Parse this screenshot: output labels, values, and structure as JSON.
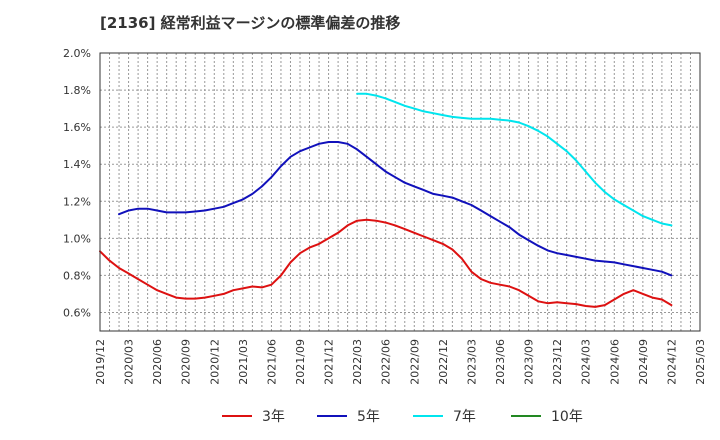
{
  "title": "[2136]  経常利益マージンの標準偏差の推移",
  "chart_data": {
    "type": "line",
    "y_axis": {
      "min": 0.5,
      "max": 2.0,
      "ticks": [
        0.6,
        0.8,
        1.0,
        1.2,
        1.4,
        1.6,
        1.8,
        2.0
      ],
      "tick_labels": [
        "0.6%",
        "0.8%",
        "1.0%",
        "1.2%",
        "1.4%",
        "1.6%",
        "1.8%",
        "2.0%"
      ],
      "unit": "%"
    },
    "x_axis": {
      "min": "2019-12",
      "max": "2025-03",
      "tick_labels": [
        "2019/12",
        "2020/03",
        "2020/06",
        "2020/09",
        "2020/12",
        "2021/03",
        "2021/06",
        "2021/09",
        "2021/12",
        "2022/03",
        "2022/06",
        "2022/09",
        "2022/12",
        "2023/03",
        "2023/06",
        "2023/09",
        "2023/12",
        "2024/03",
        "2024/06",
        "2024/09",
        "2024/12",
        "2025/03"
      ]
    },
    "grid": true,
    "legend_position": "bottom",
    "series": [
      {
        "name": "3年",
        "color": "#dd1111",
        "x": [
          "2019-12",
          "2020-01",
          "2020-02",
          "2020-03",
          "2020-04",
          "2020-05",
          "2020-06",
          "2020-07",
          "2020-08",
          "2020-09",
          "2020-10",
          "2020-11",
          "2020-12",
          "2021-01",
          "2021-02",
          "2021-03",
          "2021-04",
          "2021-05",
          "2021-06",
          "2021-07",
          "2021-08",
          "2021-09",
          "2021-10",
          "2021-11",
          "2021-12",
          "2022-01",
          "2022-02",
          "2022-03",
          "2022-04",
          "2022-05",
          "2022-06",
          "2022-07",
          "2022-08",
          "2022-09",
          "2022-10",
          "2022-11",
          "2022-12",
          "2023-01",
          "2023-02",
          "2023-03",
          "2023-04",
          "2023-05",
          "2023-06",
          "2023-07",
          "2023-08",
          "2023-09",
          "2023-10",
          "2023-11",
          "2023-12",
          "2024-01",
          "2024-02",
          "2024-03",
          "2024-04",
          "2024-05",
          "2024-06",
          "2024-07",
          "2024-08",
          "2024-09",
          "2024-10",
          "2024-11",
          "2024-12"
        ],
        "values": [
          0.93,
          0.88,
          0.84,
          0.81,
          0.78,
          0.75,
          0.72,
          0.7,
          0.68,
          0.675,
          0.675,
          0.68,
          0.69,
          0.7,
          0.72,
          0.73,
          0.74,
          0.735,
          0.75,
          0.8,
          0.87,
          0.92,
          0.95,
          0.97,
          1.0,
          1.03,
          1.07,
          1.095,
          1.1,
          1.095,
          1.085,
          1.07,
          1.05,
          1.03,
          1.01,
          0.99,
          0.97,
          0.94,
          0.89,
          0.82,
          0.78,
          0.76,
          0.75,
          0.74,
          0.72,
          0.69,
          0.66,
          0.65,
          0.655,
          0.65,
          0.645,
          0.635,
          0.63,
          0.64,
          0.67,
          0.7,
          0.72,
          0.7,
          0.68,
          0.67,
          0.64
        ]
      },
      {
        "name": "5年",
        "color": "#1111bb",
        "x": [
          "2020-02",
          "2020-03",
          "2020-04",
          "2020-05",
          "2020-06",
          "2020-07",
          "2020-08",
          "2020-09",
          "2020-10",
          "2020-11",
          "2020-12",
          "2021-01",
          "2021-02",
          "2021-03",
          "2021-04",
          "2021-05",
          "2021-06",
          "2021-07",
          "2021-08",
          "2021-09",
          "2021-10",
          "2021-11",
          "2021-12",
          "2022-01",
          "2022-02",
          "2022-03",
          "2022-04",
          "2022-05",
          "2022-06",
          "2022-07",
          "2022-08",
          "2022-09",
          "2022-10",
          "2022-11",
          "2022-12",
          "2023-01",
          "2023-02",
          "2023-03",
          "2023-04",
          "2023-05",
          "2023-06",
          "2023-07",
          "2023-08",
          "2023-09",
          "2023-10",
          "2023-11",
          "2023-12",
          "2024-01",
          "2024-02",
          "2024-03",
          "2024-04",
          "2024-05",
          "2024-06",
          "2024-07",
          "2024-08",
          "2024-09",
          "2024-10",
          "2024-11",
          "2024-12"
        ],
        "values": [
          1.13,
          1.15,
          1.16,
          1.16,
          1.15,
          1.14,
          1.14,
          1.14,
          1.145,
          1.15,
          1.16,
          1.17,
          1.19,
          1.21,
          1.24,
          1.28,
          1.33,
          1.39,
          1.44,
          1.47,
          1.49,
          1.51,
          1.52,
          1.52,
          1.51,
          1.48,
          1.44,
          1.4,
          1.36,
          1.33,
          1.3,
          1.28,
          1.26,
          1.24,
          1.23,
          1.22,
          1.2,
          1.18,
          1.15,
          1.12,
          1.09,
          1.06,
          1.02,
          0.99,
          0.96,
          0.935,
          0.92,
          0.91,
          0.9,
          0.89,
          0.88,
          0.875,
          0.87,
          0.86,
          0.85,
          0.84,
          0.83,
          0.82,
          0.8
        ]
      },
      {
        "name": "7年",
        "color": "#00e5ee",
        "x": [
          "2022-03",
          "2022-04",
          "2022-05",
          "2022-06",
          "2022-07",
          "2022-08",
          "2022-09",
          "2022-10",
          "2022-11",
          "2022-12",
          "2023-01",
          "2023-02",
          "2023-03",
          "2023-04",
          "2023-05",
          "2023-06",
          "2023-07",
          "2023-08",
          "2023-09",
          "2023-10",
          "2023-11",
          "2023-12",
          "2024-01",
          "2024-02",
          "2024-03",
          "2024-04",
          "2024-05",
          "2024-06",
          "2024-07",
          "2024-08",
          "2024-09",
          "2024-10",
          "2024-11",
          "2024-12"
        ],
        "values": [
          1.78,
          1.78,
          1.77,
          1.755,
          1.735,
          1.715,
          1.7,
          1.685,
          1.675,
          1.665,
          1.655,
          1.65,
          1.645,
          1.645,
          1.645,
          1.64,
          1.635,
          1.625,
          1.605,
          1.58,
          1.55,
          1.51,
          1.47,
          1.42,
          1.36,
          1.3,
          1.25,
          1.21,
          1.18,
          1.15,
          1.12,
          1.1,
          1.08,
          1.07
        ]
      },
      {
        "name": "10年",
        "color": "#228822",
        "x": [],
        "values": []
      }
    ]
  }
}
